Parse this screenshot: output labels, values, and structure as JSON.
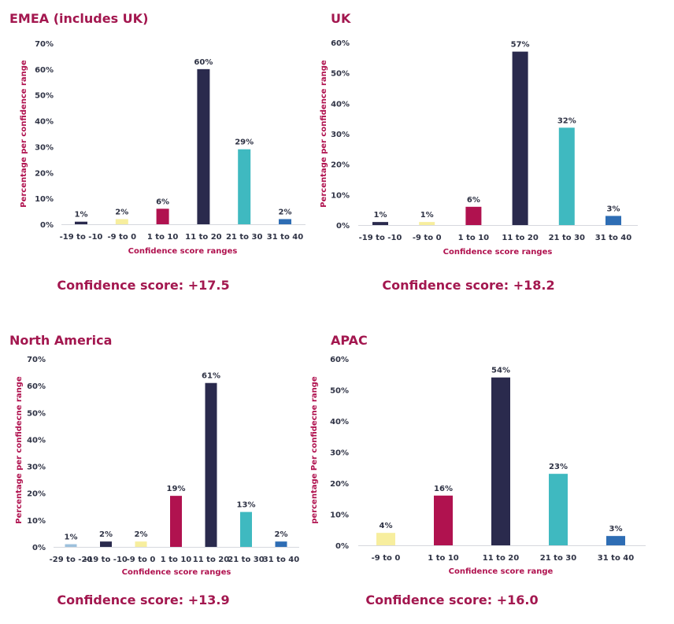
{
  "colors": {
    "navy": "#2a2a4d",
    "yellow": "#f7ee9e",
    "magenta": "#b0124f",
    "teal": "#3fb9c0",
    "blue": "#2e6db4",
    "lightblue": "#9cc0dc"
  },
  "chart_data": [
    {
      "type": "bar",
      "title": "EMEA (includes UK)",
      "xlabel": "Confidence score ranges",
      "ylabel": "Percentage per confidence range",
      "ylim": [
        0,
        70
      ],
      "yticks": [
        "0%",
        "10%",
        "20%",
        "30%",
        "40%",
        "50%",
        "60%",
        "70%"
      ],
      "categories": [
        "-19 to -10",
        "-9 to 0",
        "1 to 10",
        "11 to 20",
        "21 to 30",
        "31 to 40"
      ],
      "values": [
        1,
        2,
        6,
        60,
        29,
        2
      ],
      "bar_colors": [
        "navy",
        "yellow",
        "magenta",
        "navy",
        "teal",
        "blue"
      ],
      "data_labels": [
        "1%",
        "2%",
        "6%",
        "60%",
        "29%",
        "2%"
      ],
      "score": "Confidence score: +17.5"
    },
    {
      "type": "bar",
      "title": "UK",
      "xlabel": "Confidence score ranges",
      "ylabel": "Percentage per confidence range",
      "ylim": [
        0,
        60
      ],
      "yticks": [
        "0%",
        "10%",
        "20%",
        "30%",
        "40%",
        "50%",
        "60%"
      ],
      "categories": [
        "-19 to -10",
        "-9 to 0",
        "1 to 10",
        "11 to 20",
        "21 to 30",
        "31 to 40"
      ],
      "values": [
        1,
        1,
        6,
        57,
        32,
        3
      ],
      "bar_colors": [
        "navy",
        "yellow",
        "magenta",
        "navy",
        "teal",
        "blue"
      ],
      "data_labels": [
        "1%",
        "1%",
        "6%",
        "57%",
        "32%",
        "3%"
      ],
      "score": "Confidence score: +18.2"
    },
    {
      "type": "bar",
      "title": "North America",
      "xlabel": "Confidence score ranges",
      "ylabel": "Percentage per confidecne range",
      "ylim": [
        0,
        70
      ],
      "yticks": [
        "0%",
        "10%",
        "20%",
        "30%",
        "40%",
        "50%",
        "60%",
        "70%"
      ],
      "categories": [
        "-29 to -20",
        "-19 to -10",
        "-9 to 0",
        "1 to 10",
        "11 to 20",
        "21 to 30",
        "31 to 40"
      ],
      "values": [
        1,
        2,
        2,
        19,
        61,
        13,
        2
      ],
      "bar_colors": [
        "lightblue",
        "navy",
        "yellow",
        "magenta",
        "navy",
        "teal",
        "blue"
      ],
      "data_labels": [
        "1%",
        "2%",
        "2%",
        "19%",
        "61%",
        "13%",
        "2%"
      ],
      "score": "Confidence score: +13.9"
    },
    {
      "type": "bar",
      "title": "APAC",
      "xlabel": "Confidence score range",
      "ylabel": "percentage Per confidecne range",
      "ylim": [
        0,
        60
      ],
      "yticks": [
        "0%",
        "10%",
        "20%",
        "30%",
        "40%",
        "50%",
        "60%"
      ],
      "categories": [
        "-9 to 0",
        "1 to 10",
        "11 to 20",
        "21 to 30",
        "31 to 40"
      ],
      "values": [
        4,
        16,
        54,
        23,
        3
      ],
      "bar_colors": [
        "yellow",
        "magenta",
        "navy",
        "teal",
        "blue"
      ],
      "data_labels": [
        "4%",
        "16%",
        "54%",
        "23%",
        "3%"
      ],
      "score": "Confidence score: +16.0"
    }
  ]
}
